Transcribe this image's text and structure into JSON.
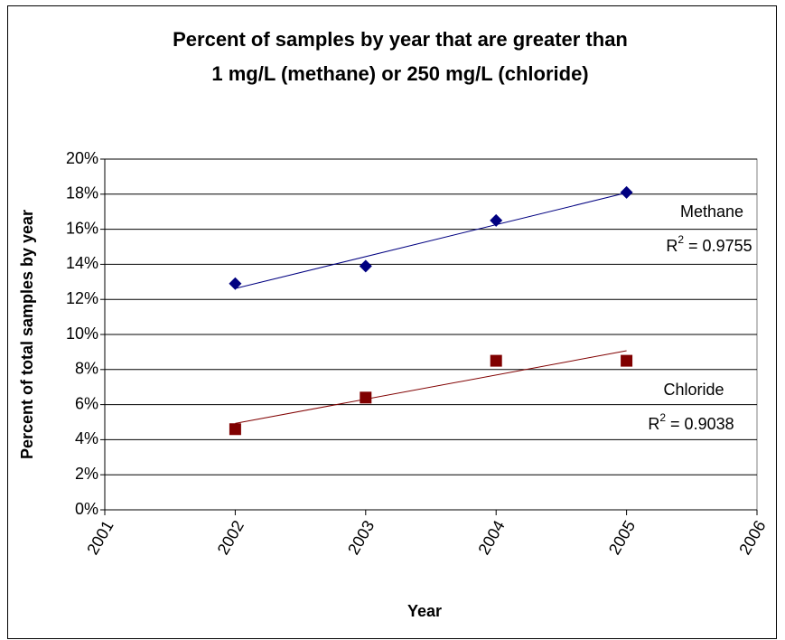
{
  "chart_data": {
    "type": "scatter",
    "title": [
      "Percent of samples by year that are greater than",
      "1 mg/L (methane) or 250 mg/L (chloride)"
    ],
    "x_label": "Year",
    "y_label": "Percent of total samples by year",
    "x": [
      2002,
      2003,
      2004,
      2005
    ],
    "series": [
      {
        "name": "Methane",
        "color": "#000080",
        "marker": "diamond",
        "values": [
          12.9,
          13.9,
          16.5,
          18.1
        ],
        "trendline": "linear",
        "r2_text": [
          "R",
          "2",
          " = 0.9755"
        ]
      },
      {
        "name": "Chloride",
        "color": "#800000",
        "marker": "square",
        "values": [
          4.6,
          6.4,
          8.5,
          8.5
        ],
        "trendline": "linear",
        "r2_text": [
          "R",
          "2",
          " = 0.9038"
        ]
      }
    ],
    "xlim": [
      2001,
      2006
    ],
    "xticks": [
      2001,
      2002,
      2003,
      2004,
      2005,
      2006
    ],
    "ylim": [
      0,
      20
    ],
    "yticks": [
      {
        "value": 0,
        "label": "0%"
      },
      {
        "value": 2,
        "label": "2%"
      },
      {
        "value": 4,
        "label": "4%"
      },
      {
        "value": 6,
        "label": "6%"
      },
      {
        "value": 8,
        "label": "8%"
      },
      {
        "value": 10,
        "label": "10%"
      },
      {
        "value": 12,
        "label": "12%"
      },
      {
        "value": 14,
        "label": "14%"
      },
      {
        "value": 16,
        "label": "16%"
      },
      {
        "value": 18,
        "label": "18%"
      },
      {
        "value": 20,
        "label": "20%"
      }
    ],
    "grid": true
  }
}
